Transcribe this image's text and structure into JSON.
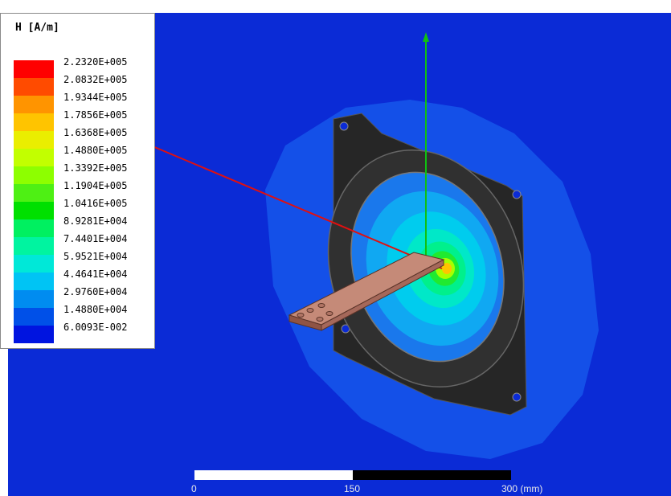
{
  "window_title": "",
  "legend": {
    "title": "H [A/m]",
    "levels": [
      {
        "label": "2.2320E+005",
        "color": "#ff0000"
      },
      {
        "label": "2.0832E+005",
        "color": "#ff4b00"
      },
      {
        "label": "1.9344E+005",
        "color": "#ff9400"
      },
      {
        "label": "1.7856E+005",
        "color": "#ffc400"
      },
      {
        "label": "1.6368E+005",
        "color": "#eaee00"
      },
      {
        "label": "1.4880E+005",
        "color": "#c2ff00"
      },
      {
        "label": "1.3392E+005",
        "color": "#8dff00"
      },
      {
        "label": "1.1904E+005",
        "color": "#4ef014"
      },
      {
        "label": "1.0416E+005",
        "color": "#00e000"
      },
      {
        "label": "8.9281E+004",
        "color": "#00f060"
      },
      {
        "label": "7.4401E+004",
        "color": "#00f4a0"
      },
      {
        "label": "5.9521E+004",
        "color": "#00e8d8"
      },
      {
        "label": "4.4641E+004",
        "color": "#00c4f4"
      },
      {
        "label": "2.9760E+004",
        "color": "#008cf0"
      },
      {
        "label": "1.4880E+004",
        "color": "#0050e8"
      },
      {
        "label": "6.0093E-002",
        "color": "#0014e0"
      }
    ]
  },
  "scale_bar": {
    "ticks": [
      "0",
      "150",
      "300 (mm)"
    ]
  },
  "colors": {
    "background": "#0b2bd6",
    "axis_x": "#e01010",
    "axis_y": "#10c010",
    "part": "#2a2a2a",
    "busbar": "#c58a78"
  }
}
